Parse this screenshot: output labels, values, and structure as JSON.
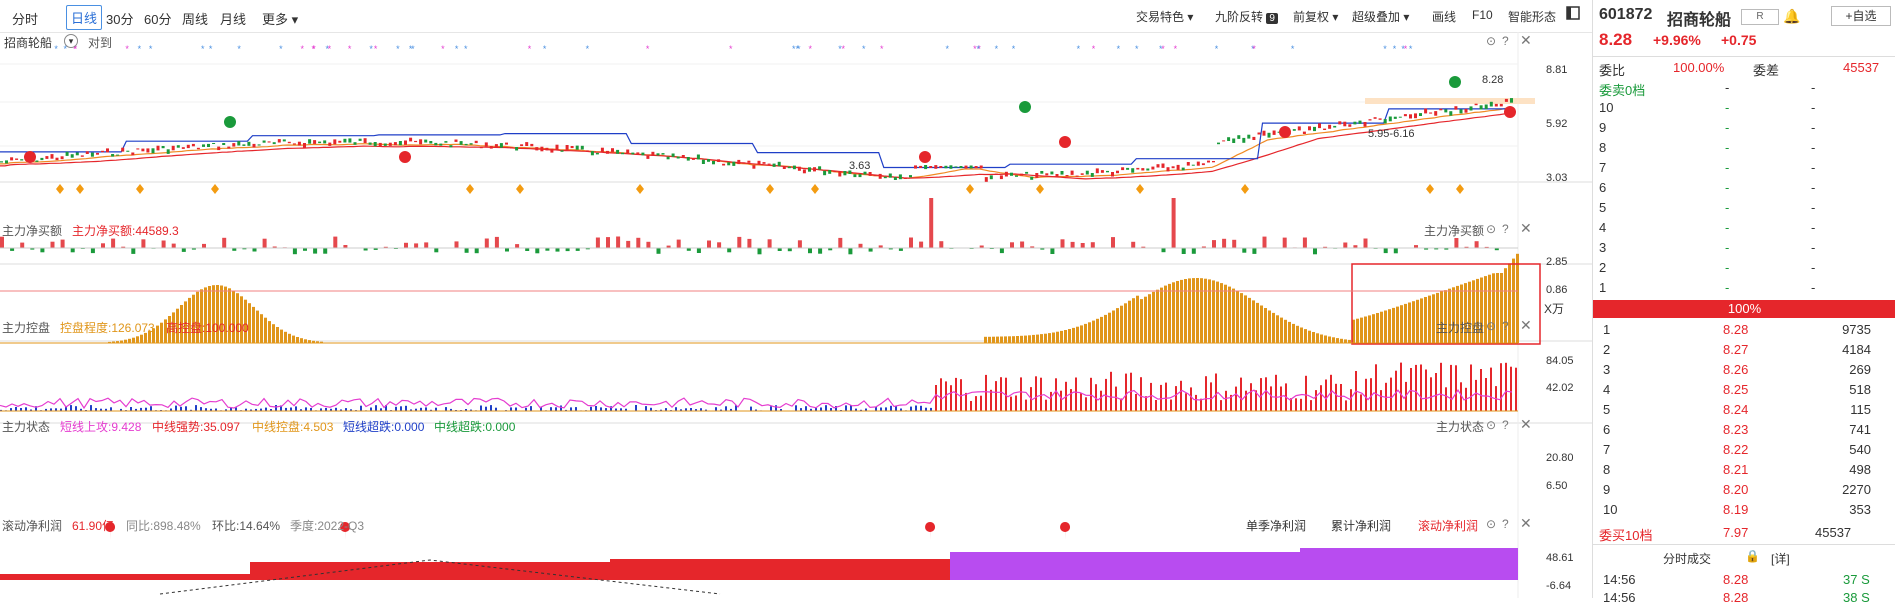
{
  "topbar": {
    "tabs": [
      "分时",
      "日线",
      "30分",
      "60分",
      "周线",
      "月线",
      "更多"
    ],
    "active_tab": "日线",
    "right_items": [
      "交易特色",
      "九阶反转",
      "前复权",
      "超级叠加",
      "画线",
      "F10",
      "智能形态"
    ],
    "nine_badge": "9"
  },
  "main_chart": {
    "stock_name": "招商轮船",
    "compare_label": "对到",
    "axis": [
      "8.81",
      "5.92",
      "3.03"
    ],
    "price_labels": {
      "high": "8.28",
      "low": "3.63",
      "range": "5.95-6.16"
    }
  },
  "panel_net_buy": {
    "title": "主力净买额",
    "value_label": "主力净买额:44589.3",
    "right_title": "主力净买额",
    "axis": [
      "2.85",
      "0.86"
    ],
    "unit": "X万"
  },
  "panel_control": {
    "title": "主力控盘",
    "degree_label": "控盘程度:126.073",
    "high_label": "高控盘:100.000",
    "right_title": "主力控盘",
    "axis": [
      "84.05",
      "42.02"
    ]
  },
  "panel_status": {
    "title": "主力状态",
    "items": [
      {
        "label": "短线上攻:9.428",
        "color": "#e53dd0"
      },
      {
        "label": "中线强势:35.097",
        "color": "#e5262b"
      },
      {
        "label": "中线控盘:4.503",
        "color": "#e0961a"
      },
      {
        "label": "短线超跌:0.000",
        "color": "#1f3fc7"
      },
      {
        "label": "中线超跌:0.000",
        "color": "#1a9a3b"
      }
    ],
    "right_title": "主力状态",
    "axis": [
      "20.80",
      "6.50"
    ]
  },
  "panel_profit": {
    "title": "滚动净利润",
    "value": "61.90亿",
    "yoy": "同比:898.48%",
    "qoq": "环比:14.64%",
    "season": "季度:2022-Q3",
    "tabs": [
      "单季净利润",
      "累计净利润",
      "滚动净利润"
    ],
    "axis": [
      "48.61",
      "-6.64"
    ]
  },
  "quote": {
    "code": "601872",
    "name": "招商轮船",
    "r_btn": "R",
    "watch_btn": "自选",
    "price": "8.28",
    "change_pct": "+9.96%",
    "change": "+0.75",
    "weibi_label": "委比",
    "weibi_value": "100.00%",
    "weicha_label": "委差",
    "weicha_value": "45537",
    "sell_header": "委卖0档",
    "sell_header_a": "-",
    "sell_header_b": "-",
    "sell_levels": [
      "10",
      "9",
      "8",
      "7",
      "6",
      "5",
      "4",
      "3",
      "2",
      "1"
    ],
    "ratio_bar": "100%",
    "buy_rows": [
      {
        "level": "1",
        "price": "8.28",
        "vol": "9735"
      },
      {
        "level": "2",
        "price": "8.27",
        "vol": "4184"
      },
      {
        "level": "3",
        "price": "8.26",
        "vol": "269"
      },
      {
        "level": "4",
        "price": "8.25",
        "vol": "518"
      },
      {
        "level": "5",
        "price": "8.24",
        "vol": "115"
      },
      {
        "level": "6",
        "price": "8.23",
        "vol": "741"
      },
      {
        "level": "7",
        "price": "8.22",
        "vol": "540"
      },
      {
        "level": "8",
        "price": "8.21",
        "vol": "498"
      },
      {
        "level": "9",
        "price": "8.20",
        "vol": "2270"
      },
      {
        "level": "10",
        "price": "8.19",
        "vol": "353"
      }
    ],
    "buy_footer": {
      "label": "委买10档",
      "price": "7.97",
      "vol": "45537"
    },
    "trades_title": "分时成交",
    "detail_btn": "[详]",
    "trades": [
      {
        "time": "14:56",
        "price": "8.28",
        "vol": "37",
        "side": "S"
      },
      {
        "time": "14:56",
        "price": "8.28",
        "vol": "38",
        "side": "S"
      }
    ]
  },
  "colors": {
    "up": "#e5262b",
    "down": "#1a9a3b",
    "orange": "#e0961a",
    "purple": "#b84cf0",
    "blue": "#1f3fc7",
    "accent": "#2a6fd6"
  }
}
